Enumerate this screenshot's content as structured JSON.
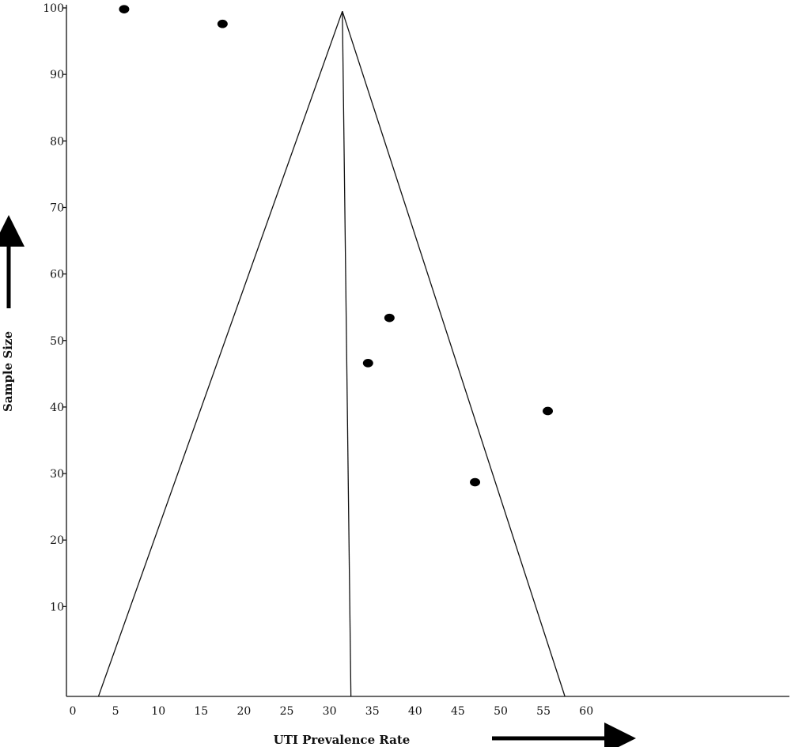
{
  "chart_data": {
    "type": "scatter",
    "title": "",
    "xlabel": "UTI Prevalence Rate",
    "ylabel": "Sample Size",
    "xlim": [
      0,
      60
    ],
    "ylim": [
      0,
      100
    ],
    "x_ticks": [
      0,
      5,
      10,
      15,
      20,
      25,
      30,
      35,
      40,
      45,
      50,
      55,
      60
    ],
    "y_ticks": [
      10,
      20,
      30,
      40,
      50,
      60,
      70,
      80,
      90,
      100
    ],
    "x_tick_labels": [
      "0",
      "5",
      "10",
      "15",
      "20",
      "25",
      "30",
      "35",
      "40",
      "45",
      "50",
      "55",
      "60"
    ],
    "y_tick_labels": [
      "10",
      "20",
      "30",
      "40",
      "50",
      "60",
      "70",
      "80",
      "90",
      "100"
    ],
    "funnel": {
      "apex": {
        "x": 31.5,
        "y": 99.5
      },
      "left_base": {
        "x": 3,
        "y": 0
      },
      "right_base": {
        "x": 57.5,
        "y": 0
      },
      "center_base": {
        "x": 32.5,
        "y": 0
      }
    },
    "points": [
      {
        "x": 6,
        "y": 99.8
      },
      {
        "x": 17.5,
        "y": 97.6
      },
      {
        "x": 34.5,
        "y": 46.6
      },
      {
        "x": 37,
        "y": 53.4
      },
      {
        "x": 47,
        "y": 28.7
      },
      {
        "x": 55.5,
        "y": 39.4
      }
    ],
    "grid": false,
    "legend": "none"
  }
}
